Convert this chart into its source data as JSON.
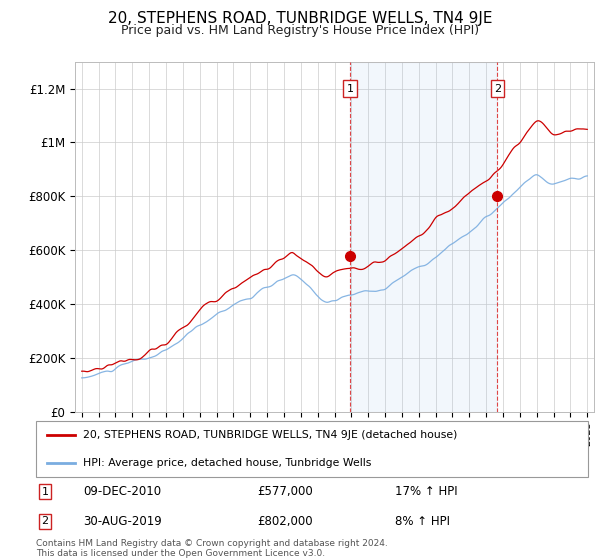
{
  "title": "20, STEPHENS ROAD, TUNBRIDGE WELLS, TN4 9JE",
  "subtitle": "Price paid vs. HM Land Registry's House Price Index (HPI)",
  "title_fontsize": 11,
  "subtitle_fontsize": 9,
  "line_color_red": "#cc0000",
  "line_color_blue": "#7aade0",
  "fill_color_blue": "#ddeeff",
  "dashed_color": "#dd4444",
  "background_color": "#ffffff",
  "grid_color": "#cccccc",
  "ylim": [
    0,
    1300000
  ],
  "yticks": [
    0,
    200000,
    400000,
    600000,
    800000,
    1000000,
    1200000
  ],
  "ytick_labels": [
    "£0",
    "£200K",
    "£400K",
    "£600K",
    "£800K",
    "£1M",
    "£1.2M"
  ],
  "legend_label_red": "20, STEPHENS ROAD, TUNBRIDGE WELLS, TN4 9JE (detached house)",
  "legend_label_blue": "HPI: Average price, detached house, Tunbridge Wells",
  "transaction1_label": "1",
  "transaction1_date": "09-DEC-2010",
  "transaction1_price": "£577,000",
  "transaction1_hpi": "17% ↑ HPI",
  "transaction1_year": 2010.92,
  "transaction1_value": 577000,
  "transaction2_label": "2",
  "transaction2_date": "30-AUG-2019",
  "transaction2_price": "£802,000",
  "transaction2_hpi": "8% ↑ HPI",
  "transaction2_year": 2019.66,
  "transaction2_value": 802000,
  "footer": "Contains HM Land Registry data © Crown copyright and database right 2024.\nThis data is licensed under the Open Government Licence v3.0."
}
